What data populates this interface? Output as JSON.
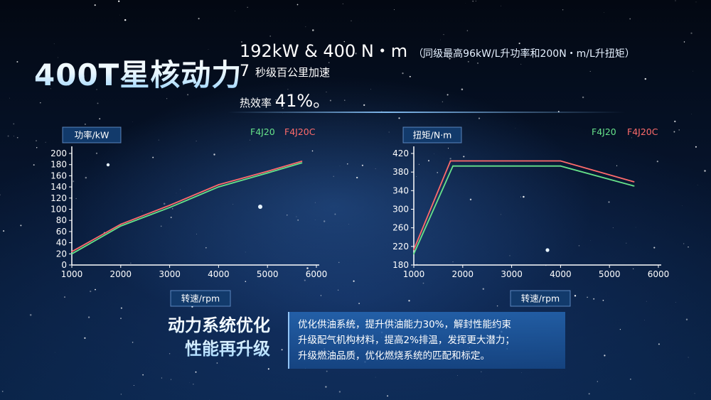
{
  "colors": {
    "f4j20": "#66e28a",
    "f4j20c": "#ff6b6b",
    "axis": "#ffffff",
    "label_bg": "#123a6b"
  },
  "header": {
    "title": "400T星核动力",
    "spec_main": "192kW & 400 N・m",
    "spec_note": "（同级最高96kW/L升功率和200N・m/L升扭矩）",
    "accel_num": "7",
    "accel_text": "秒级百公里加速",
    "eff_label": "热效率",
    "eff_value": "41%。"
  },
  "optimization": {
    "title_line1": "动力系统优化",
    "title_line2": "性能再升级",
    "items": [
      "优化供油系统，提升供油能力30%，解封性能约束",
      "升级配气机构材料，提高2%排温，发挥更大潜力；",
      "升级燃油品质，优化燃烧系统的匹配和标定。"
    ]
  },
  "chart_data": [
    {
      "type": "line",
      "ylabel": "功率/kW",
      "xlabel": "转速/rpm",
      "xlim": [
        1000,
        6000
      ],
      "ylim": [
        0,
        200
      ],
      "x_ticks": [
        1000,
        2000,
        3000,
        4000,
        5000,
        6000
      ],
      "y_ticks": [
        0,
        20,
        40,
        60,
        80,
        100,
        120,
        140,
        160,
        180,
        200
      ],
      "legend": "top-right",
      "series": [
        {
          "name": "F4J20",
          "color": "#66e28a",
          "x": [
            1000,
            2000,
            3000,
            4000,
            5000,
            5700
          ],
          "y": [
            20,
            70,
            103,
            140,
            165,
            183
          ]
        },
        {
          "name": "F4J20C",
          "color": "#ff6b6b",
          "x": [
            1000,
            2000,
            3000,
            4000,
            5000,
            5700
          ],
          "y": [
            24,
            73,
            107,
            144,
            168,
            186
          ]
        }
      ]
    },
    {
      "type": "line",
      "ylabel": "扭矩/N·m",
      "xlabel": "转速/rpm",
      "xlim": [
        1000,
        6000
      ],
      "ylim": [
        180,
        420
      ],
      "x_ticks": [
        1000,
        2000,
        3000,
        4000,
        5000,
        6000
      ],
      "y_ticks": [
        180,
        220,
        260,
        300,
        340,
        380,
        420
      ],
      "legend": "top-right",
      "series": [
        {
          "name": "F4J20",
          "color": "#66e28a",
          "x": [
            1000,
            1800,
            4000,
            5500
          ],
          "y": [
            204,
            393,
            393,
            350
          ]
        },
        {
          "name": "F4J20C",
          "color": "#ff6b6b",
          "x": [
            1000,
            1750,
            4000,
            5500
          ],
          "y": [
            213,
            404,
            404,
            359
          ]
        }
      ]
    }
  ]
}
